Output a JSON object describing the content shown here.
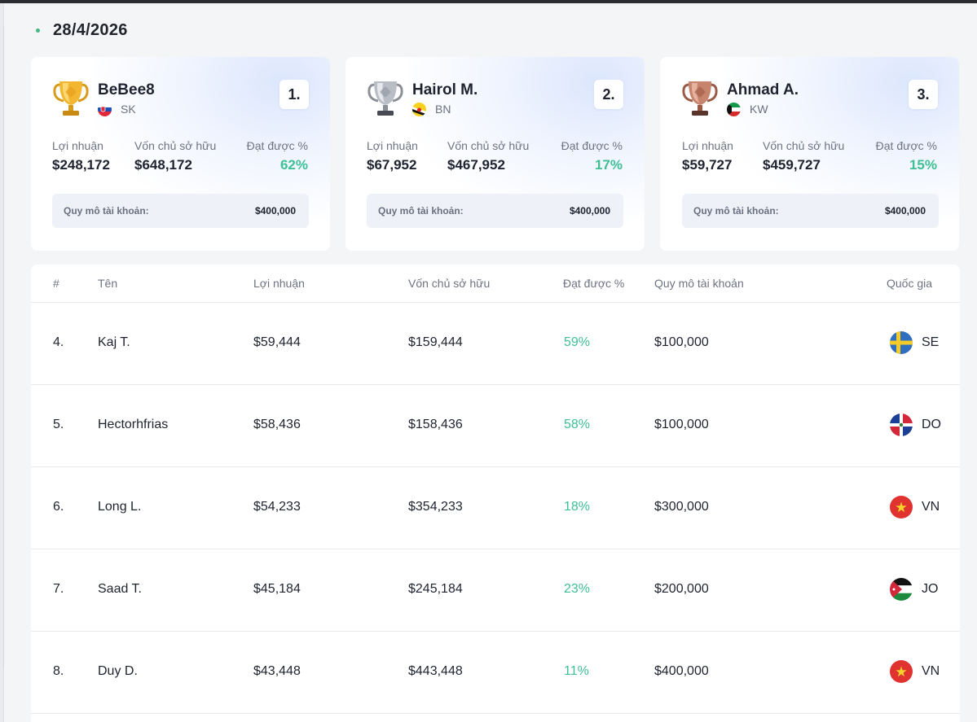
{
  "date": "28/4/2026",
  "colors": {
    "accent_green": "#3fbf94",
    "text": "#1f2330",
    "muted": "#6e7383"
  },
  "top3": [
    {
      "rank": "1.",
      "name": "BeBee8",
      "country": "SK",
      "trophy": "gold-trophy-icon",
      "profit_label": "Lợi nhuận",
      "profit": "$248,172",
      "equity_label": "Vốn chủ sở hữu",
      "equity": "$648,172",
      "gain_label": "Đạt được %",
      "gain": "62%",
      "size_label": "Quy mô tài khoản:",
      "size": "$400,000"
    },
    {
      "rank": "2.",
      "name": "Hairol M.",
      "country": "BN",
      "trophy": "silver-trophy-icon",
      "profit_label": "Lợi nhuận",
      "profit": "$67,952",
      "equity_label": "Vốn chủ sở hữu",
      "equity": "$467,952",
      "gain_label": "Đạt được %",
      "gain": "17%",
      "size_label": "Quy mô tài khoản:",
      "size": "$400,000"
    },
    {
      "rank": "3.",
      "name": "Ahmad A.",
      "country": "KW",
      "trophy": "bronze-trophy-icon",
      "profit_label": "Lợi nhuận",
      "profit": "$59,727",
      "equity_label": "Vốn chủ sở hữu",
      "equity": "$459,727",
      "gain_label": "Đạt được %",
      "gain": "15%",
      "size_label": "Quy mô tài khoản:",
      "size": "$400,000"
    }
  ],
  "table": {
    "headers": {
      "rank": "#",
      "name": "Tên",
      "profit": "Lợi nhuận",
      "equity": "Vốn chủ sở hữu",
      "gain": "Đạt được %",
      "size": "Quy mô tài khoản",
      "country": "Quốc gia"
    },
    "rows": [
      {
        "rank": "4.",
        "name": "Kaj T.",
        "profit": "$59,444",
        "equity": "$159,444",
        "gain": "59%",
        "size": "$100,000",
        "country": "SE"
      },
      {
        "rank": "5.",
        "name": "Hectorhfrias",
        "profit": "$58,436",
        "equity": "$158,436",
        "gain": "58%",
        "size": "$100,000",
        "country": "DO"
      },
      {
        "rank": "6.",
        "name": "Long L.",
        "profit": "$54,233",
        "equity": "$354,233",
        "gain": "18%",
        "size": "$300,000",
        "country": "VN"
      },
      {
        "rank": "7.",
        "name": "Saad T.",
        "profit": "$45,184",
        "equity": "$245,184",
        "gain": "23%",
        "size": "$200,000",
        "country": "JO"
      },
      {
        "rank": "8.",
        "name": "Duy D.",
        "profit": "$43,448",
        "equity": "$443,448",
        "gain": "11%",
        "size": "$400,000",
        "country": "VN"
      }
    ]
  }
}
